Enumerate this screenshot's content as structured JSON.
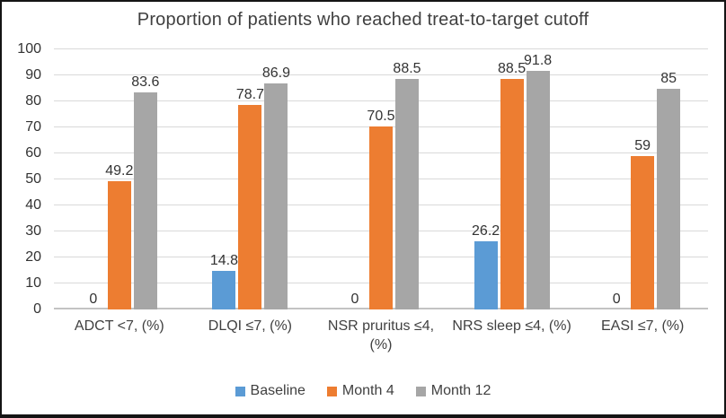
{
  "chart_data": {
    "type": "bar",
    "title": "Proportion of patients who reached treat-to-target cutoff",
    "categories": [
      "ADCT <7, (%)",
      "DLQI ≤7, (%)",
      "NSR pruritus ≤4, (%)",
      "NRS sleep ≤4, (%)",
      "EASI ≤7, (%)"
    ],
    "series": [
      {
        "name": "Baseline",
        "color": "#5B9BD5",
        "values": [
          0,
          14.8,
          0,
          26.2,
          0
        ]
      },
      {
        "name": "Month 4",
        "color": "#ED7D31",
        "values": [
          49.2,
          78.7,
          70.5,
          88.5,
          59
        ]
      },
      {
        "name": "Month 12",
        "color": "#A6A6A6",
        "values": [
          83.6,
          86.9,
          88.5,
          91.8,
          85
        ]
      }
    ],
    "ylim": [
      0,
      100
    ],
    "ytick_step": 10,
    "grid": true,
    "legend_position": "bottom",
    "value_labels_shown": true
  }
}
